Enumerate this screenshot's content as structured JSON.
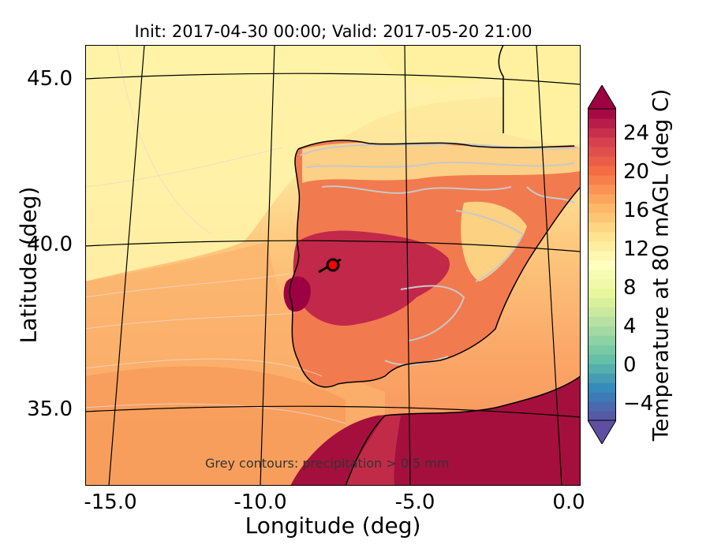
{
  "title": "Init: 2017-04-30 00:00; Valid: 2017-05-20 21:00",
  "axes": {
    "xlabel": "Longitude (deg)",
    "ylabel": "Latitude (deg)",
    "xticks": [
      {
        "value": -15.0,
        "label": "-15.0"
      },
      {
        "value": -10.0,
        "label": "-10.0"
      },
      {
        "value": -5.0,
        "label": "-5.0"
      },
      {
        "value": 0.0,
        "label": "0.0"
      }
    ],
    "yticks": [
      {
        "value": 45.0,
        "label": "45.0"
      },
      {
        "value": 40.0,
        "label": "40.0"
      },
      {
        "value": 35.0,
        "label": "35.0"
      }
    ]
  },
  "colorbar": {
    "label": "Temperature at 80 mAGL (deg C)",
    "ticks": [
      "24",
      "20",
      "16",
      "12",
      "8",
      "4",
      "0",
      "−4"
    ],
    "tick_values": [
      24,
      20,
      16,
      12,
      8,
      4,
      0,
      -4
    ],
    "range": [
      -6,
      27
    ],
    "colormap": "Spectral_r",
    "extend": "both"
  },
  "annotation": "Grey contours: precipitation > 0.5 mm",
  "marker": {
    "lon": -7.7,
    "lat": 39.3,
    "color": "#ff0000"
  },
  "colors": {
    "ocean_cool": "#fdf2a6",
    "ocean_mid": "#fdd280",
    "ocean_warm": "#f7a05f",
    "land_hot": "#a50f3e",
    "precip_contour": "#c8c8c8"
  }
}
